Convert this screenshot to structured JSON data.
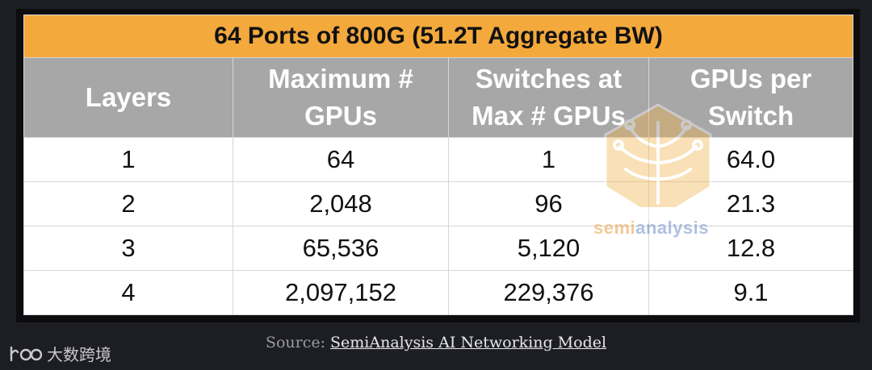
{
  "table": {
    "title": "64 Ports of 800G (51.2T Aggregate BW)",
    "headers": [
      [
        "Layers"
      ],
      [
        "Maximum #",
        "GPUs"
      ],
      [
        "Switches at",
        "Max # GPUs"
      ],
      [
        "GPUs per",
        "Switch"
      ]
    ],
    "rows": [
      [
        "1",
        "64",
        "1",
        "64.0"
      ],
      [
        "2",
        "2,048",
        "96",
        "21.3"
      ],
      [
        "3",
        "65,536",
        "5,120",
        "12.8"
      ],
      [
        "4",
        "2,097,152",
        "229,376",
        "9.1"
      ]
    ]
  },
  "watermark": {
    "part1": "semi",
    "part2": "analysis"
  },
  "source": {
    "prefix": "Source:",
    "link_text": "SemiAnalysis AI Networking Model"
  },
  "brand": {
    "text": "大数跨境"
  },
  "colors": {
    "title_bg": "#f4a93c",
    "header_bg": "#a7a7a7",
    "page_bg": "#1d1e24"
  }
}
